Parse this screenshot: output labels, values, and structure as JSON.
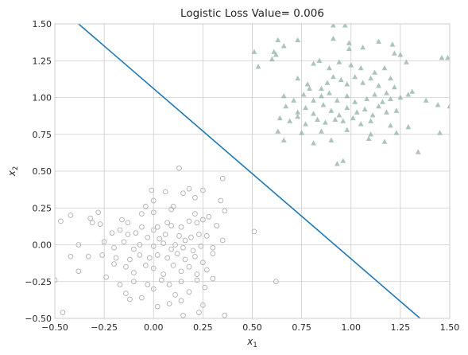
{
  "chart_data": {
    "type": "scatter",
    "title": "Logistic Loss Value= 0.006",
    "xlabel": {
      "base": "x",
      "sub": "1"
    },
    "ylabel": {
      "base": "x",
      "sub": "2"
    },
    "xlim": [
      -0.5,
      1.5
    ],
    "ylim": [
      -0.5,
      1.5
    ],
    "xticks": [
      -0.5,
      -0.25,
      0.0,
      0.25,
      0.5,
      0.75,
      1.0,
      1.25,
      1.5
    ],
    "yticks": [
      -0.5,
      -0.25,
      0.0,
      0.25,
      0.5,
      0.75,
      1.0,
      1.25,
      1.5
    ],
    "xtick_labels": [
      "−0.50",
      "−0.25",
      "0.00",
      "0.25",
      "0.50",
      "0.75",
      "1.00",
      "1.25",
      "1.50"
    ],
    "ytick_labels": [
      "−0.50",
      "−0.25",
      "0.00",
      "0.25",
      "0.50",
      "0.75",
      "1.00",
      "1.25",
      "1.50"
    ],
    "grid": true,
    "colors": {
      "circle_edge": "#b0b0b0",
      "triangle_fill": "#8fb0a6",
      "line": "#1f77b4",
      "grid": "#cccccc",
      "spine": "#cccccc"
    },
    "decision_line": {
      "x": [
        -0.38,
        1.35
      ],
      "y": [
        1.5,
        -0.5
      ]
    },
    "series": [
      {
        "marker": "circle",
        "points": [
          [
            0.13,
            0.52
          ],
          [
            0.35,
            0.45
          ],
          [
            -0.01,
            0.37
          ],
          [
            0.06,
            0.36
          ],
          [
            0.15,
            0.35
          ],
          [
            0.18,
            0.38
          ],
          [
            0.25,
            0.37
          ],
          [
            0.21,
            0.32
          ],
          [
            0.34,
            0.3
          ],
          [
            0.0,
            0.3
          ],
          [
            0.1,
            0.26
          ],
          [
            -0.04,
            0.26
          ],
          [
            0.36,
            0.23
          ],
          [
            0.21,
            0.21
          ],
          [
            0.09,
            0.24
          ],
          [
            0.0,
            0.22
          ],
          [
            -0.06,
            0.21
          ],
          [
            -0.47,
            0.16
          ],
          [
            -0.42,
            0.2
          ],
          [
            -0.32,
            0.18
          ],
          [
            -0.31,
            0.15
          ],
          [
            -0.27,
            0.14
          ],
          [
            -0.28,
            0.22
          ],
          [
            -0.16,
            0.17
          ],
          [
            -0.13,
            0.15
          ],
          [
            -0.06,
            0.12
          ],
          [
            0.0,
            0.1
          ],
          [
            0.02,
            0.12
          ],
          [
            0.07,
            0.15
          ],
          [
            0.09,
            0.13
          ],
          [
            0.14,
            0.12
          ],
          [
            0.18,
            0.16
          ],
          [
            0.22,
            0.15
          ],
          [
            0.25,
            0.17
          ],
          [
            0.28,
            0.19
          ],
          [
            0.32,
            0.13
          ],
          [
            -0.21,
            0.08
          ],
          [
            -0.17,
            0.1
          ],
          [
            -0.13,
            0.07
          ],
          [
            -0.09,
            0.08
          ],
          [
            -0.03,
            0.05
          ],
          [
            0.03,
            0.04
          ],
          [
            0.06,
            0.07
          ],
          [
            0.13,
            0.06
          ],
          [
            0.16,
            0.03
          ],
          [
            0.19,
            0.05
          ],
          [
            0.23,
            0.07
          ],
          [
            0.27,
            0.06
          ],
          [
            0.35,
            0.03
          ],
          [
            -0.38,
            0.0
          ],
          [
            -0.25,
            0.02
          ],
          [
            -0.2,
            -0.02
          ],
          [
            -0.15,
            0.02
          ],
          [
            -0.1,
            -0.03
          ],
          [
            -0.07,
            0.0
          ],
          [
            0.0,
            -0.01
          ],
          [
            0.05,
            0.01
          ],
          [
            0.09,
            -0.03
          ],
          [
            0.11,
            0.0
          ],
          [
            0.15,
            -0.02
          ],
          [
            0.2,
            -0.04
          ],
          [
            0.24,
            -0.01
          ],
          [
            0.3,
            -0.02
          ],
          [
            0.51,
            0.09
          ],
          [
            -0.42,
            -0.08
          ],
          [
            -0.33,
            -0.08
          ],
          [
            -0.26,
            -0.07
          ],
          [
            -0.19,
            -0.09
          ],
          [
            -0.12,
            -0.1
          ],
          [
            -0.07,
            -0.07
          ],
          [
            -0.02,
            -0.09
          ],
          [
            0.02,
            -0.07
          ],
          [
            0.07,
            -0.09
          ],
          [
            0.12,
            -0.06
          ],
          [
            0.16,
            -0.1
          ],
          [
            0.21,
            -0.08
          ],
          [
            0.25,
            -0.12
          ],
          [
            0.3,
            -0.06
          ],
          [
            -0.38,
            -0.18
          ],
          [
            -0.24,
            -0.22
          ],
          [
            -0.2,
            -0.13
          ],
          [
            -0.14,
            -0.15
          ],
          [
            -0.1,
            -0.19
          ],
          [
            -0.04,
            -0.14
          ],
          [
            0.0,
            -0.16
          ],
          [
            0.05,
            -0.2
          ],
          [
            0.1,
            -0.14
          ],
          [
            0.14,
            -0.18
          ],
          [
            0.18,
            -0.15
          ],
          [
            0.22,
            -0.2
          ],
          [
            0.27,
            -0.17
          ],
          [
            0.3,
            -0.23
          ],
          [
            -0.17,
            -0.27
          ],
          [
            -0.1,
            -0.25
          ],
          [
            -0.03,
            -0.27
          ],
          [
            0.04,
            -0.24
          ],
          [
            0.08,
            -0.27
          ],
          [
            0.14,
            -0.25
          ],
          [
            0.22,
            -0.24
          ],
          [
            0.62,
            -0.25
          ],
          [
            -0.5,
            -0.24
          ],
          [
            -0.14,
            -0.33
          ],
          [
            -0.06,
            -0.36
          ],
          [
            0.0,
            -0.3
          ],
          [
            0.11,
            -0.34
          ],
          [
            0.18,
            -0.32
          ],
          [
            0.26,
            -0.29
          ],
          [
            -0.12,
            -0.37
          ],
          [
            0.02,
            -0.42
          ],
          [
            0.08,
            -0.4
          ],
          [
            0.14,
            -0.38
          ],
          [
            0.25,
            -0.41
          ],
          [
            -0.46,
            -0.46
          ],
          [
            0.15,
            -0.48
          ],
          [
            0.23,
            -0.46
          ],
          [
            0.36,
            -0.48
          ]
        ]
      },
      {
        "marker": "triangle",
        "points": [
          [
            0.91,
            1.49
          ],
          [
            0.97,
            1.49
          ],
          [
            0.63,
            1.39
          ],
          [
            0.66,
            1.35
          ],
          [
            0.73,
            1.39
          ],
          [
            0.51,
            1.31
          ],
          [
            0.61,
            1.31
          ],
          [
            0.91,
            1.4
          ],
          [
            0.99,
            1.37
          ],
          [
            1.06,
            1.34
          ],
          [
            1.14,
            1.38
          ],
          [
            1.21,
            1.36
          ],
          [
            1.25,
            1.29
          ],
          [
            0.99,
            1.33
          ],
          [
            1.22,
            1.3
          ],
          [
            0.53,
            1.21
          ],
          [
            0.6,
            1.26
          ],
          [
            0.62,
            1.29
          ],
          [
            0.81,
            1.23
          ],
          [
            0.84,
            1.25
          ],
          [
            0.89,
            1.2
          ],
          [
            0.94,
            1.24
          ],
          [
            1.0,
            1.22
          ],
          [
            1.05,
            1.2
          ],
          [
            1.12,
            1.17
          ],
          [
            1.17,
            1.2
          ],
          [
            1.2,
            1.13
          ],
          [
            1.28,
            1.24
          ],
          [
            1.46,
            1.27
          ],
          [
            1.49,
            1.27
          ],
          [
            0.73,
            1.13
          ],
          [
            0.78,
            1.09
          ],
          [
            0.79,
            1.06
          ],
          [
            0.85,
            1.06
          ],
          [
            0.88,
            1.1
          ],
          [
            0.91,
            1.14
          ],
          [
            0.95,
            1.12
          ],
          [
            0.98,
            1.09
          ],
          [
            1.02,
            1.14
          ],
          [
            1.06,
            1.1
          ],
          [
            1.1,
            1.13
          ],
          [
            1.14,
            1.08
          ],
          [
            1.18,
            1.03
          ],
          [
            1.22,
            1.07
          ],
          [
            1.29,
            1.02
          ],
          [
            1.31,
            1.04
          ],
          [
            0.66,
            1.01
          ],
          [
            0.71,
            0.98
          ],
          [
            0.76,
            1.02
          ],
          [
            0.81,
            0.98
          ],
          [
            0.85,
            1.01
          ],
          [
            0.89,
            1.03
          ],
          [
            0.93,
            0.98
          ],
          [
            0.98,
            1.01
          ],
          [
            1.02,
            0.97
          ],
          [
            1.08,
            0.99
          ],
          [
            1.12,
            1.02
          ],
          [
            1.16,
            0.97
          ],
          [
            1.2,
            0.99
          ],
          [
            1.25,
            1.0
          ],
          [
            1.38,
            0.98
          ],
          [
            1.44,
            0.95
          ],
          [
            1.5,
            0.94
          ],
          [
            0.67,
            0.94
          ],
          [
            0.73,
            0.9
          ],
          [
            0.77,
            0.93
          ],
          [
            0.81,
            0.89
          ],
          [
            0.86,
            0.95
          ],
          [
            0.9,
            0.91
          ],
          [
            0.94,
            0.88
          ],
          [
            0.98,
            0.93
          ],
          [
            1.03,
            0.9
          ],
          [
            1.07,
            0.92
          ],
          [
            1.11,
            0.88
          ],
          [
            1.14,
            0.94
          ],
          [
            1.18,
            0.9
          ],
          [
            1.23,
            0.91
          ],
          [
            0.64,
            0.86
          ],
          [
            0.69,
            0.84
          ],
          [
            0.73,
            0.87
          ],
          [
            0.77,
            0.82
          ],
          [
            0.83,
            0.85
          ],
          [
            0.87,
            0.83
          ],
          [
            0.92,
            0.85
          ],
          [
            0.96,
            0.84
          ],
          [
            1.01,
            0.86
          ],
          [
            1.05,
            0.82
          ],
          [
            1.1,
            0.84
          ],
          [
            1.2,
            0.81
          ],
          [
            1.29,
            0.8
          ],
          [
            0.63,
            0.77
          ],
          [
            0.75,
            0.76
          ],
          [
            0.85,
            0.77
          ],
          [
            0.98,
            0.78
          ],
          [
            1.1,
            0.75
          ],
          [
            1.23,
            0.76
          ],
          [
            1.45,
            0.76
          ],
          [
            0.66,
            0.71
          ],
          [
            0.81,
            0.69
          ],
          [
            0.9,
            0.71
          ],
          [
            1.09,
            0.72
          ],
          [
            1.17,
            0.7
          ],
          [
            1.34,
            0.63
          ],
          [
            0.93,
            0.55
          ],
          [
            0.96,
            0.57
          ]
        ]
      }
    ]
  }
}
